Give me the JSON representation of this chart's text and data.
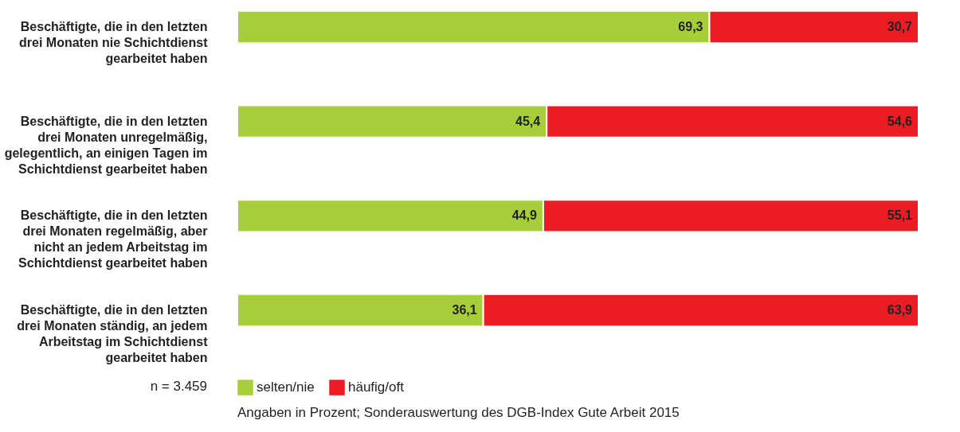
{
  "chart_data": {
    "type": "bar",
    "orientation": "horizontal",
    "stacked": true,
    "categories": [
      "Beschäftigte, die in den letzten drei Monaten nie Schichtdienst gearbeitet haben",
      "Beschäftigte, die in den letzten drei Monaten unregelmäßig, gelegentlich, an einigen Tagen im Schichtdienst gearbeitet haben",
      "Beschäftigte, die in den letzten drei Monaten regelmäßig, aber nicht an jedem Arbeitstag im Schichtdienst gearbeitet haben",
      "Beschäftigte, die in den letzten drei Monaten ständig, an jedem Arbeitstag im Schichtdienst gearbeitet haben"
    ],
    "series": [
      {
        "name": "selten/nie",
        "color": "#a6ce39",
        "values": [
          69.3,
          45.4,
          44.9,
          36.1
        ],
        "value_labels": [
          "69,3",
          "45,4",
          "44,9",
          "36,1"
        ]
      },
      {
        "name": "häufig/oft",
        "color": "#ed1c24",
        "values": [
          30.7,
          54.6,
          55.1,
          63.9
        ],
        "value_labels": [
          "30,7",
          "54,6",
          "55,1",
          "63,9"
        ]
      }
    ],
    "legend": "bottom",
    "tick_labels": "y",
    "grid": false,
    "annotations": [
      "n = 3.459",
      "Angaben in Prozent; Sonderauswertung des DGB-Index Gute Arbeit 2015"
    ]
  }
}
